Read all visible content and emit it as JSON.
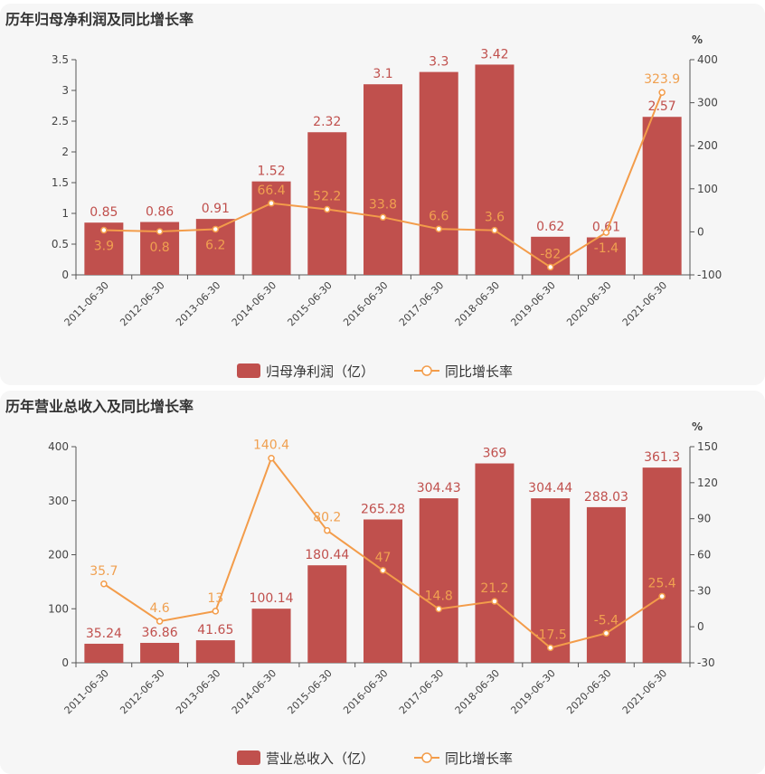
{
  "chart_data": [
    {
      "type": "bar+line",
      "title": "历年归母净利润及同比增长率",
      "categories": [
        "2011-06-30",
        "2012-06-30",
        "2013-06-30",
        "2014-06-30",
        "2015-06-30",
        "2016-06-30",
        "2017-06-30",
        "2018-06-30",
        "2019-06-30",
        "2020-06-30",
        "2021-06-30"
      ],
      "series": [
        {
          "name": "归母净利润（亿）",
          "type": "bar",
          "axis": "left",
          "values": [
            0.85,
            0.86,
            0.91,
            1.52,
            2.32,
            3.1,
            3.3,
            3.42,
            0.62,
            0.61,
            2.57
          ]
        },
        {
          "name": "同比增长率",
          "type": "line",
          "axis": "right",
          "values": [
            3.9,
            0.8,
            6.2,
            66.4,
            52.2,
            33.8,
            6.6,
            3.6,
            -82,
            -1.4,
            323.9
          ]
        }
      ],
      "left_axis": {
        "ylim": [
          0,
          3.5
        ],
        "ticks": [
          "0",
          "0.5",
          "1",
          "1.5",
          "2",
          "2.5",
          "3",
          "3.5"
        ]
      },
      "right_axis": {
        "label": "%",
        "ylim": [
          -100,
          400
        ],
        "ticks": [
          "-100",
          "0",
          "100",
          "200",
          "300",
          "400"
        ]
      },
      "legend": "bottom",
      "grid": false
    },
    {
      "type": "bar+line",
      "title": "历年营业总收入及同比增长率",
      "categories": [
        "2011-06-30",
        "2012-06-30",
        "2013-06-30",
        "2014-06-30",
        "2015-06-30",
        "2016-06-30",
        "2017-06-30",
        "2018-06-30",
        "2019-06-30",
        "2020-06-30",
        "2021-06-30"
      ],
      "series": [
        {
          "name": "营业总收入（亿）",
          "type": "bar",
          "axis": "left",
          "values": [
            35.24,
            36.86,
            41.65,
            100.14,
            180.44,
            265.28,
            304.43,
            369,
            304.44,
            288.03,
            361.3
          ]
        },
        {
          "name": "同比增长率",
          "type": "line",
          "axis": "right",
          "values": [
            35.7,
            4.6,
            13,
            140.4,
            80.2,
            47,
            14.8,
            21.2,
            -17.5,
            -5.4,
            25.4
          ]
        }
      ],
      "left_axis": {
        "ylim": [
          0,
          400
        ],
        "ticks": [
          "0",
          "100",
          "200",
          "300",
          "400"
        ]
      },
      "right_axis": {
        "label": "%",
        "ylim": [
          -30,
          150
        ],
        "ticks": [
          "-30",
          "0",
          "30",
          "60",
          "90",
          "120",
          "150"
        ]
      },
      "legend": "bottom",
      "grid": false
    }
  ],
  "colors": {
    "bar": "#c0504d",
    "line": "#f39c4a",
    "bar_label": "#c0504d",
    "line_label": "#f0a050",
    "axis": "#555555"
  }
}
